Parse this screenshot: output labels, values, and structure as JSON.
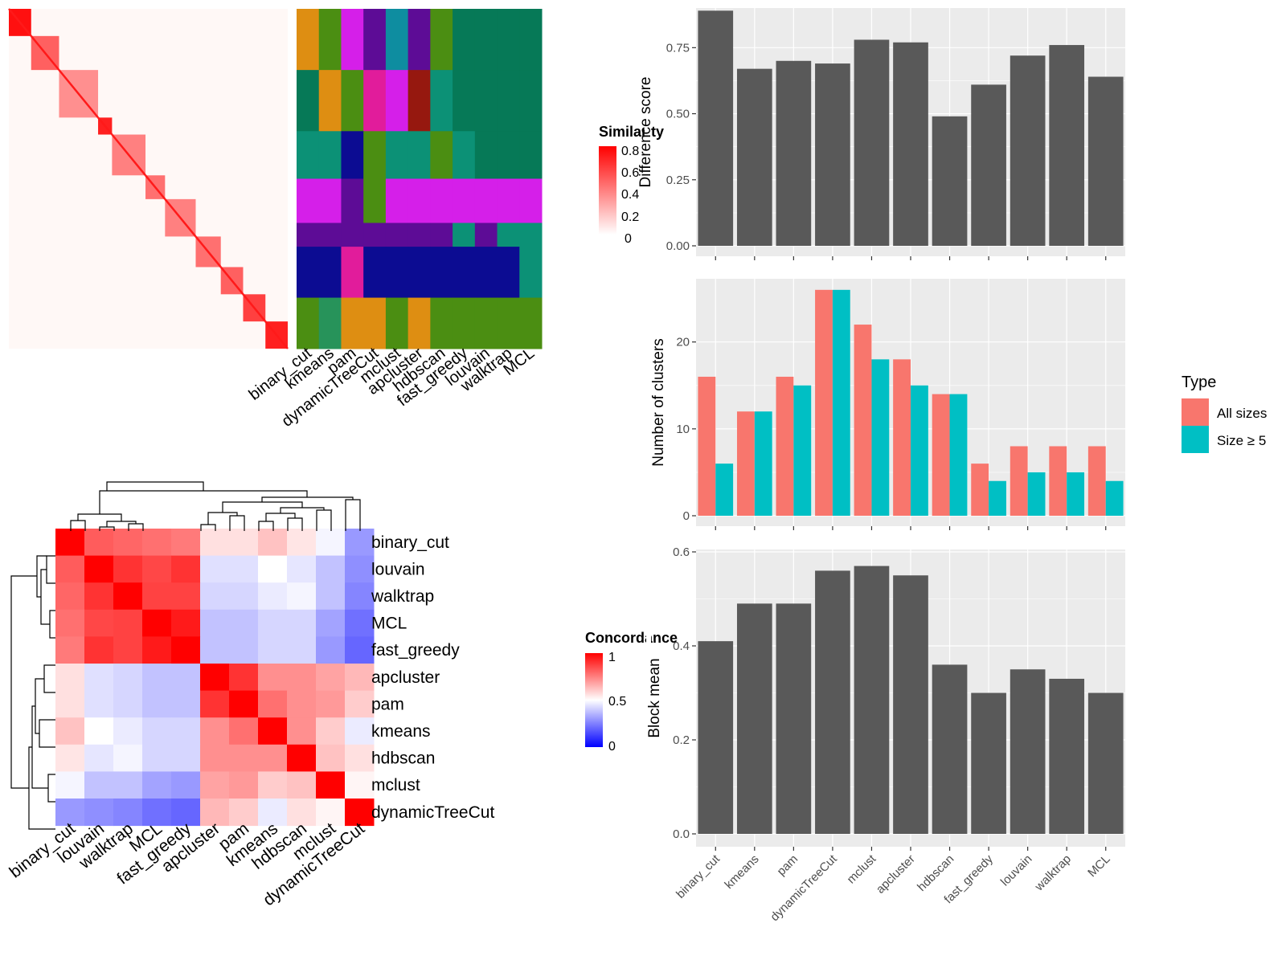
{
  "similarity_legend": {
    "title": "Similarity",
    "ticks": [
      "0.8",
      "0.6",
      "0.4",
      "0.2",
      "0"
    ]
  },
  "concordance_legend": {
    "title": "Concordance",
    "ticks": [
      "1",
      "0.5",
      "0"
    ]
  },
  "type_legend": {
    "title": "Type",
    "entries": [
      {
        "label": "All sizes",
        "color": "#F8766D"
      },
      {
        "label": "Size ≥ 5",
        "color": "#00BFC4"
      }
    ]
  },
  "membership_methods": [
    "binary_cut",
    "kmeans",
    "pam",
    "dynamicTreeCut",
    "mclust",
    "apcluster",
    "hdbscan",
    "fast_greedy",
    "louvain",
    "walktrap",
    "MCL"
  ],
  "concordance_methods": [
    "binary_cut",
    "louvain",
    "walktrap",
    "MCL",
    "fast_greedy",
    "apcluster",
    "pam",
    "kmeans",
    "hdbscan",
    "mclust",
    "dynamicTreeCut"
  ],
  "colors": {
    "bar": "#595959",
    "panel_bg": "#EBEBEB",
    "grid": "#FFFFFF",
    "high": "#FF0000",
    "low": "#0000FF"
  },
  "chart_data": [
    {
      "type": "heatmap",
      "title": "",
      "description_free": true,
      "legend": "Similarity",
      "value_range": [
        0,
        0.8
      ],
      "blocks": [
        {
          "start": 0.0,
          "end": 0.08,
          "value": 0.75
        },
        {
          "start": 0.08,
          "end": 0.18,
          "value": 0.5
        },
        {
          "start": 0.18,
          "end": 0.32,
          "value": 0.35
        },
        {
          "start": 0.32,
          "end": 0.37,
          "value": 0.7
        },
        {
          "start": 0.37,
          "end": 0.49,
          "value": 0.4
        },
        {
          "start": 0.49,
          "end": 0.56,
          "value": 0.45
        },
        {
          "start": 0.56,
          "end": 0.67,
          "value": 0.4
        },
        {
          "start": 0.67,
          "end": 0.76,
          "value": 0.45
        },
        {
          "start": 0.76,
          "end": 0.84,
          "value": 0.5
        },
        {
          "start": 0.84,
          "end": 0.92,
          "value": 0.6
        },
        {
          "start": 0.92,
          "end": 1.0,
          "value": 0.7
        }
      ]
    },
    {
      "type": "heatmap",
      "legend": "",
      "columns": [
        "binary_cut",
        "kmeans",
        "pam",
        "dynamicTreeCut",
        "mclust",
        "apcluster",
        "hdbscan",
        "fast_greedy",
        "louvain",
        "walktrap",
        "MCL"
      ],
      "palette": [
        "#067957",
        "#0C9176",
        "#D51FE9",
        "#5D0C96",
        "#0C0C92",
        "#4B8E12",
        "#DE8E12",
        "#E11C9B",
        "#96180F",
        "#0E8DA0",
        "#27935A"
      ],
      "row_groups": [
        {
          "rows": [
            0.0,
            0.18
          ],
          "cells": [
            6,
            5,
            2,
            3,
            9,
            3,
            5,
            0,
            0,
            0,
            0
          ]
        },
        {
          "rows": [
            0.18,
            0.36
          ],
          "cells": [
            0,
            6,
            5,
            7,
            2,
            8,
            1,
            0,
            0,
            0,
            0
          ]
        },
        {
          "rows": [
            0.36,
            0.5
          ],
          "cells": [
            1,
            1,
            4,
            5,
            1,
            1,
            5,
            1,
            0,
            0,
            0
          ]
        },
        {
          "rows": [
            0.5,
            0.63
          ],
          "cells": [
            2,
            2,
            3,
            5,
            2,
            2,
            2,
            2,
            2,
            2,
            2
          ]
        },
        {
          "rows": [
            0.63,
            0.7
          ],
          "cells": [
            3,
            3,
            3,
            3,
            3,
            3,
            3,
            1,
            3,
            1,
            1
          ]
        },
        {
          "rows": [
            0.7,
            0.85
          ],
          "cells": [
            4,
            4,
            7,
            4,
            4,
            4,
            4,
            4,
            4,
            4,
            1
          ]
        },
        {
          "rows": [
            0.85,
            1.0
          ],
          "cells": [
            5,
            10,
            6,
            6,
            5,
            6,
            5,
            5,
            5,
            5,
            5
          ]
        }
      ]
    },
    {
      "type": "heatmap",
      "legend": "Concordance",
      "rows": [
        "binary_cut",
        "louvain",
        "walktrap",
        "MCL",
        "fast_greedy",
        "apcluster",
        "pam",
        "kmeans",
        "hdbscan",
        "mclust",
        "dynamicTreeCut"
      ],
      "columns": [
        "binary_cut",
        "louvain",
        "walktrap",
        "MCL",
        "fast_greedy",
        "apcluster",
        "pam",
        "kmeans",
        "hdbscan",
        "mclust",
        "dynamicTreeCut"
      ],
      "value_range": [
        0,
        1
      ],
      "values": [
        [
          1.0,
          0.82,
          0.8,
          0.78,
          0.76,
          0.56,
          0.56,
          0.62,
          0.55,
          0.48,
          0.3
        ],
        [
          0.82,
          1.0,
          0.9,
          0.86,
          0.9,
          0.44,
          0.44,
          0.5,
          0.45,
          0.38,
          0.28
        ],
        [
          0.8,
          0.9,
          1.0,
          0.87,
          0.87,
          0.42,
          0.42,
          0.46,
          0.48,
          0.38,
          0.26
        ],
        [
          0.78,
          0.86,
          0.87,
          1.0,
          0.95,
          0.38,
          0.38,
          0.42,
          0.42,
          0.32,
          0.22
        ],
        [
          0.76,
          0.9,
          0.87,
          0.95,
          1.0,
          0.38,
          0.38,
          0.42,
          0.42,
          0.3,
          0.2
        ],
        [
          0.56,
          0.44,
          0.42,
          0.38,
          0.38,
          1.0,
          0.9,
          0.72,
          0.72,
          0.68,
          0.64
        ],
        [
          0.56,
          0.44,
          0.42,
          0.38,
          0.38,
          0.9,
          1.0,
          0.78,
          0.72,
          0.7,
          0.6
        ],
        [
          0.62,
          0.5,
          0.46,
          0.42,
          0.42,
          0.72,
          0.78,
          1.0,
          0.72,
          0.6,
          0.46
        ],
        [
          0.55,
          0.45,
          0.48,
          0.42,
          0.42,
          0.72,
          0.72,
          0.72,
          1.0,
          0.62,
          0.56
        ],
        [
          0.48,
          0.38,
          0.38,
          0.32,
          0.3,
          0.68,
          0.7,
          0.6,
          0.62,
          1.0,
          0.52
        ],
        [
          0.3,
          0.28,
          0.26,
          0.22,
          0.2,
          0.64,
          0.6,
          0.46,
          0.56,
          0.52,
          1.0
        ]
      ],
      "dendrogram": "hierarchical clustering of rows and columns"
    },
    {
      "type": "bar",
      "categories": [
        "binary_cut",
        "kmeans",
        "pam",
        "dynamicTreeCut",
        "mclust",
        "apcluster",
        "hdbscan",
        "fast_greedy",
        "louvain",
        "walktrap",
        "MCL"
      ],
      "values": [
        0.89,
        0.67,
        0.7,
        0.69,
        0.78,
        0.77,
        0.49,
        0.61,
        0.72,
        0.76,
        0.64
      ],
      "xlabel": "",
      "ylabel": "Difference score",
      "ylim": [
        0,
        0.9
      ],
      "yticks": [
        "0.00",
        "0.25",
        "0.50",
        "0.75"
      ]
    },
    {
      "type": "bar",
      "categories": [
        "binary_cut",
        "kmeans",
        "pam",
        "dynamicTreeCut",
        "mclust",
        "apcluster",
        "hdbscan",
        "fast_greedy",
        "louvain",
        "walktrap",
        "MCL"
      ],
      "series": [
        {
          "name": "All sizes",
          "values": [
            16,
            12,
            16,
            26,
            22,
            18,
            14,
            6,
            8,
            8,
            8
          ]
        },
        {
          "name": "Size ≥ 5",
          "values": [
            6,
            12,
            15,
            26,
            18,
            15,
            14,
            4,
            5,
            5,
            4
          ]
        }
      ],
      "xlabel": "",
      "ylabel": "Number of clusters",
      "ylim": [
        0,
        27
      ],
      "yticks": [
        "0",
        "10",
        "20"
      ]
    },
    {
      "type": "bar",
      "categories": [
        "binary_cut",
        "kmeans",
        "pam",
        "dynamicTreeCut",
        "mclust",
        "apcluster",
        "hdbscan",
        "fast_greedy",
        "louvain",
        "walktrap",
        "MCL"
      ],
      "values": [
        0.41,
        0.49,
        0.49,
        0.56,
        0.57,
        0.55,
        0.36,
        0.3,
        0.35,
        0.33,
        0.3
      ],
      "xlabel": "",
      "ylabel": "Block mean",
      "ylim": [
        0,
        0.6
      ],
      "yticks": [
        "0.0",
        "0.2",
        "0.4",
        "0.6"
      ]
    }
  ]
}
